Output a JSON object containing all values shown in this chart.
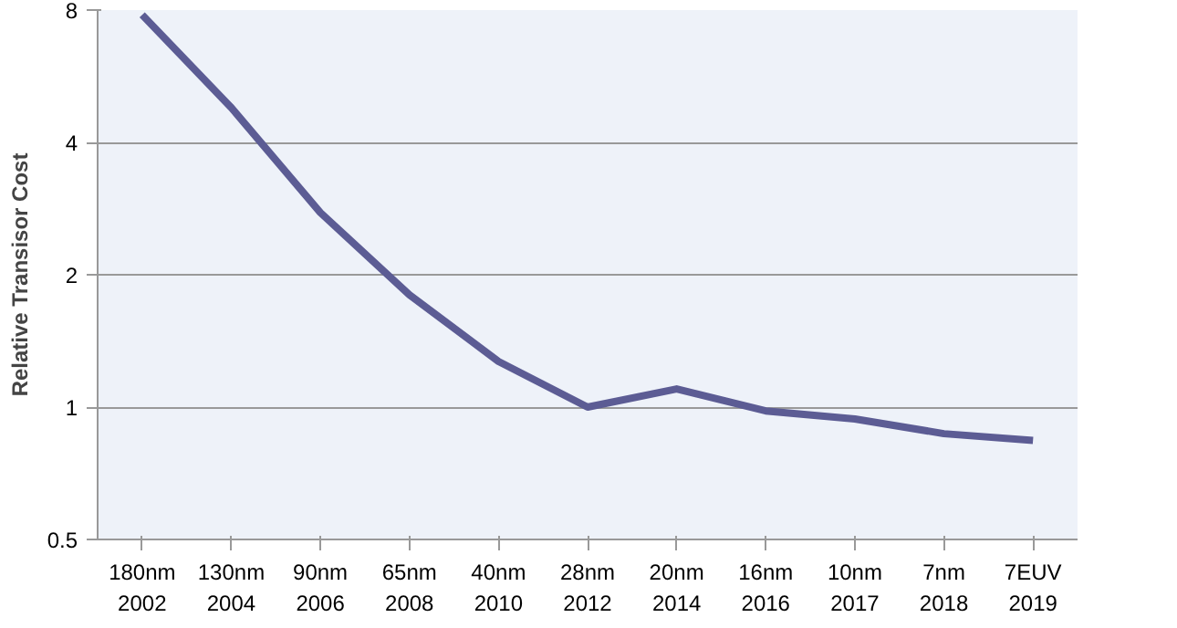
{
  "chart_data": {
    "type": "line",
    "ylabel": "Relative Transisor Cost",
    "log": "y",
    "categories": [
      "180nm\n2002",
      "130nm\n2004",
      "90nm\n2006",
      "65nm\n2008",
      "40nm\n2010",
      "28nm\n2012",
      "20nm\n2014",
      "16nm\n2016",
      "10nm\n2017",
      "7nm\n2018",
      "7EUV\n2019"
    ],
    "series": [
      {
        "color": "#5c5c94",
        "values": [
          7.8,
          4.8,
          2.77,
          1.8,
          1.27,
          1.0,
          1.1,
          0.98,
          0.94,
          0.87,
          0.84
        ]
      }
    ],
    "ylim": [
      0.5,
      8
    ],
    "yticks": [
      0.5,
      1,
      2,
      4,
      8
    ],
    "grid": "y",
    "marker": "none",
    "line_style": "solid"
  }
}
